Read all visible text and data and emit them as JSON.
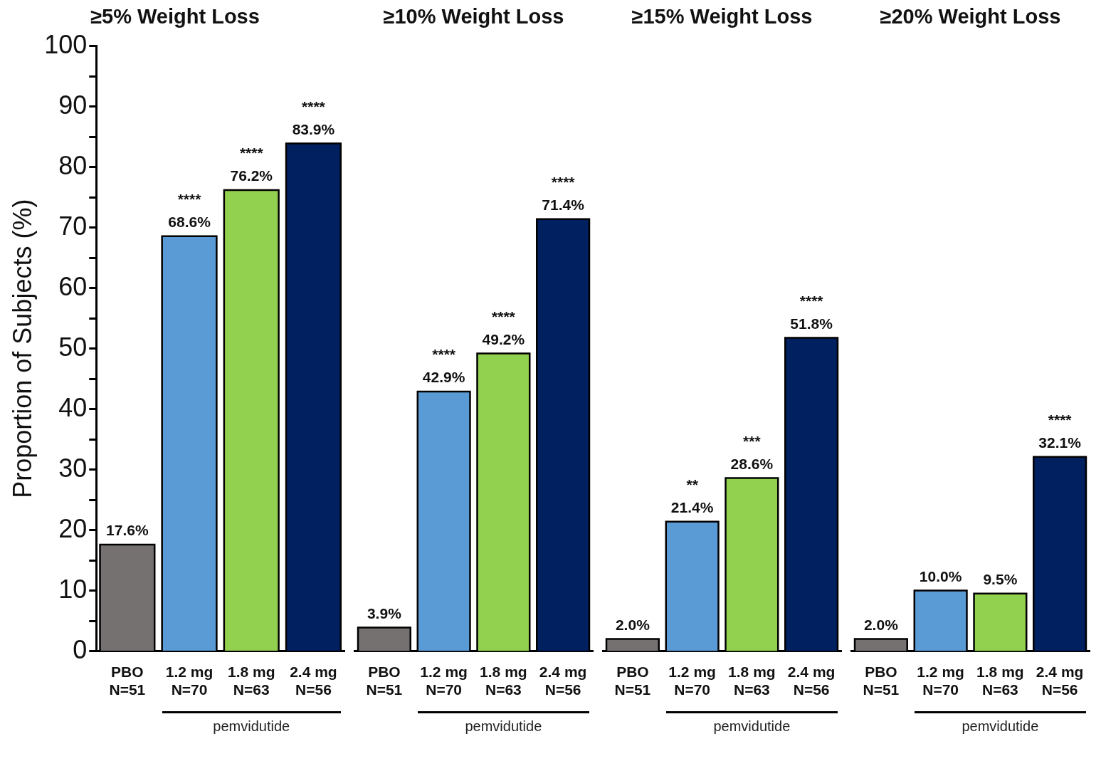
{
  "chart_data": [
    {
      "type": "bar",
      "title": "≥5% Weight Loss",
      "ylabel": "Proportion of Subjects (%)",
      "categories": [
        "PBO\nN=51",
        "1.2 mg\nN=70",
        "1.8 mg\nN=63",
        "2.4 mg\nN=56"
      ],
      "values": [
        17.6,
        68.6,
        76.2,
        83.9
      ],
      "colors": [
        "#767171",
        "#5b9bd5",
        "#92d050",
        "#002060"
      ],
      "value_labels": [
        "17.6%",
        "68.6%",
        "76.2%",
        "83.9%"
      ],
      "ylim": [
        0,
        100
      ],
      "yticks": [
        0,
        {
          "value": 5,
          "label": null
        },
        10,
        {
          "value": 15,
          "label": null
        },
        20,
        {
          "value": 25,
          "label": null
        },
        30,
        {
          "value": 35,
          "label": null
        },
        40,
        {
          "value": 45,
          "label": null
        },
        50,
        {
          "value": 55,
          "label": null
        },
        60,
        {
          "value": 65,
          "label": null
        },
        70,
        {
          "value": 75,
          "label": null
        },
        80,
        {
          "value": 85,
          "label": null
        },
        90,
        {
          "value": 95,
          "label": null
        },
        100
      ],
      "grid": false,
      "annotations": [
        {
          "text": "****",
          "x": "1.2 mg\nN=70",
          "y": 68.6
        },
        {
          "text": "****",
          "x": "1.8 mg\nN=63",
          "y": 76.2
        },
        {
          "text": "****",
          "x": "2.4 mg\nN=56",
          "y": 83.9
        },
        "pemvidutide"
      ]
    },
    {
      "type": "bar",
      "title": "≥10% Weight Loss",
      "categories": [
        "PBO\nN=51",
        "1.2 mg\nN=70",
        "1.8 mg\nN=63",
        "2.4 mg\nN=56"
      ],
      "values": [
        3.9,
        42.9,
        49.2,
        71.4
      ],
      "colors": [
        "#767171",
        "#5b9bd5",
        "#92d050",
        "#002060"
      ],
      "value_labels": [
        "3.9%",
        "42.9%",
        "49.2%",
        "71.4%"
      ],
      "ylim": [
        0,
        100
      ],
      "tick_labels": "x",
      "grid": false,
      "annotations": [
        {
          "text": "****",
          "x": "1.2 mg\nN=70",
          "y": 42.9
        },
        {
          "text": "****",
          "x": "1.8 mg\nN=63",
          "y": 49.2
        },
        {
          "text": "****",
          "x": "2.4 mg\nN=56",
          "y": 71.4
        },
        "pemvidutide"
      ]
    },
    {
      "type": "bar",
      "title": "≥15% Weight Loss",
      "categories": [
        "PBO\nN=51",
        "1.2 mg\nN=70",
        "1.8 mg\nN=63",
        "2.4 mg\nN=56"
      ],
      "values": [
        2.0,
        21.4,
        28.6,
        51.8
      ],
      "colors": [
        "#767171",
        "#5b9bd5",
        "#92d050",
        "#002060"
      ],
      "value_labels": [
        "2.0%",
        "21.4%",
        "28.6%",
        "51.8%"
      ],
      "ylim": [
        0,
        100
      ],
      "tick_labels": "x",
      "grid": false,
      "annotations": [
        {
          "text": "**",
          "x": "1.2 mg\nN=70",
          "y": 21.4
        },
        {
          "text": "***",
          "x": "1.8 mg\nN=63",
          "y": 28.6
        },
        {
          "text": "****",
          "x": "2.4 mg\nN=56",
          "y": 51.8
        },
        "pemvidutide"
      ]
    },
    {
      "type": "bar",
      "title": "≥20% Weight Loss",
      "categories": [
        "PBO\nN=51",
        "1.2 mg\nN=70",
        "1.8 mg\nN=63",
        "2.4 mg\nN=56"
      ],
      "values": [
        2.0,
        10.0,
        9.5,
        32.1
      ],
      "colors": [
        "#767171",
        "#5b9bd5",
        "#92d050",
        "#002060"
      ],
      "value_labels": [
        "2.0%",
        "10.0%",
        "9.5%",
        "32.1%"
      ],
      "ylim": [
        0,
        100
      ],
      "tick_labels": "x",
      "grid": false,
      "annotations": [
        {
          "text": "****",
          "x": "2.4 mg\nN=56",
          "y": 32.1
        },
        "pemvidutide"
      ]
    }
  ]
}
